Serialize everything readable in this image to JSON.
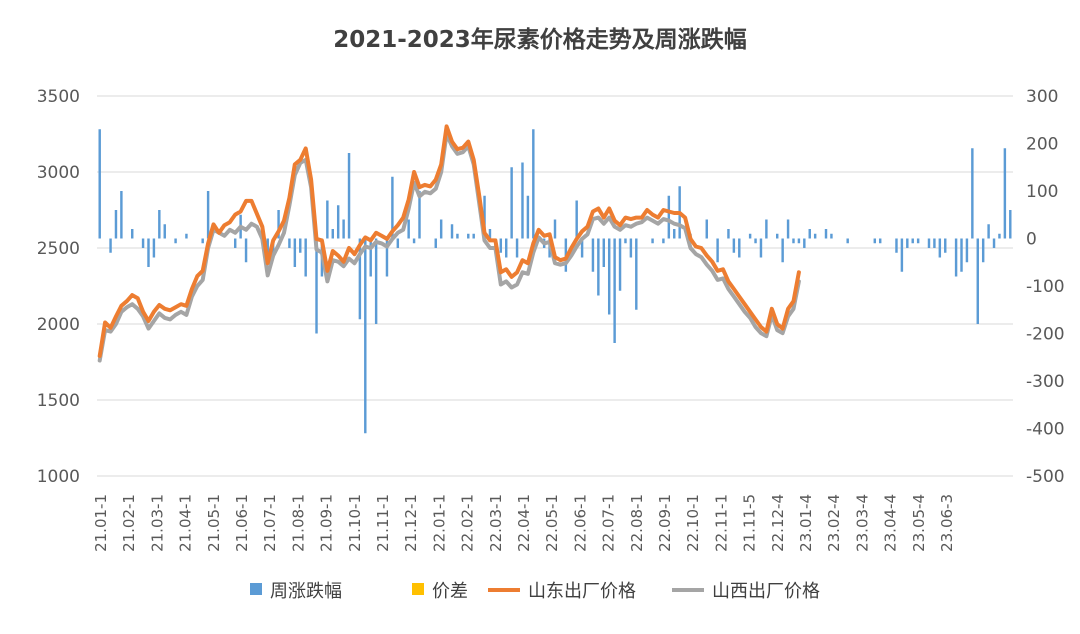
{
  "chart_data": {
    "type": "line",
    "title": "2021-2023年尿素价格走势及周涨跌幅",
    "x_tick_labels": [
      "21.01-1",
      "21.02-1",
      "21.03-1",
      "21.04-1",
      "21.05-1",
      "21.06-1",
      "21.07-1",
      "21.08-1",
      "21.09-1",
      "21.10-1",
      "21.11-1",
      "21.12-1",
      "22.01-1",
      "22.02-1",
      "22.03-1",
      "22.04-1",
      "22.05-1",
      "22.06-1",
      "22.07-1",
      "22.08-1",
      "22.09-1",
      "22.10-1",
      "22.11-1",
      "21.11-5",
      "22.12-4",
      "23.01-4",
      "23.02-4",
      "23.03-4",
      "23.04-4",
      "23.05-4",
      "23.06-3"
    ],
    "y_left": {
      "min": 1000,
      "max": 3500,
      "ticks": [
        "1000",
        "1500",
        "2000",
        "2500",
        "3000",
        "3500"
      ]
    },
    "y_right": {
      "min": -500,
      "max": 300,
      "ticks": [
        "-500",
        "-400",
        "-300",
        "-200",
        "-100",
        "0",
        "100",
        "200",
        "300"
      ]
    },
    "legend_position": "bottom",
    "colors": {
      "weekly": "#5b9bd5",
      "spread": "#ffc000",
      "shandong": "#ed7d31",
      "shanxi": "#a5a5a5"
    },
    "series": [
      {
        "name": "周涨跌幅",
        "type": "bar",
        "axis": "right",
        "values": [
          230,
          0,
          -30,
          60,
          100,
          0,
          20,
          0,
          -20,
          -60,
          -40,
          60,
          30,
          0,
          -10,
          0,
          10,
          0,
          0,
          -10,
          100,
          0,
          0,
          0,
          0,
          -20,
          50,
          -50,
          0,
          0,
          0,
          -30,
          -40,
          60,
          0,
          -20,
          -60,
          -30,
          -80,
          0,
          -200,
          -80,
          80,
          20,
          70,
          40,
          180,
          0,
          -170,
          -410,
          -80,
          -180,
          0,
          -80,
          130,
          -20,
          0,
          40,
          -10,
          100,
          0,
          0,
          -20,
          40,
          0,
          30,
          10,
          0,
          10,
          10,
          0,
          90,
          20,
          -20,
          -30,
          -40,
          150,
          -40,
          160,
          90,
          230,
          0,
          -20,
          -40,
          40,
          0,
          -70,
          0,
          80,
          -40,
          0,
          -70,
          -120,
          -60,
          -160,
          -220,
          -110,
          -10,
          -40,
          -150,
          0,
          0,
          -10,
          0,
          -10,
          90,
          20,
          110,
          0,
          10,
          0,
          0,
          40,
          0,
          -50,
          0,
          20,
          -30,
          -40,
          0,
          10,
          -10,
          -40,
          40,
          0,
          10,
          -50,
          40,
          -10,
          -10,
          -20,
          20,
          10,
          0,
          20,
          10,
          0,
          0,
          -10,
          0,
          0,
          0,
          0,
          -10,
          -10,
          0,
          0,
          -30,
          -70,
          -20,
          -10,
          -10,
          0,
          -20,
          -20,
          -40,
          -30,
          0,
          -80,
          -70,
          -50,
          190,
          -180,
          -50,
          30,
          -20,
          10,
          190,
          60
        ]
      },
      {
        "name": "价差",
        "type": "line",
        "axis": "left",
        "values": []
      },
      {
        "name": "山东出厂价格",
        "type": "line",
        "axis": "left",
        "values": [
          1790,
          2010,
          1975,
          2050,
          2120,
          2150,
          2190,
          2170,
          2080,
          2020,
          2080,
          2125,
          2100,
          2090,
          2110,
          2130,
          2120,
          2230,
          2315,
          2350,
          2530,
          2655,
          2600,
          2650,
          2670,
          2720,
          2740,
          2810,
          2810,
          2725,
          2640,
          2400,
          2550,
          2610,
          2680,
          2830,
          3050,
          3080,
          3155,
          2950,
          2560,
          2550,
          2350,
          2480,
          2450,
          2410,
          2500,
          2460,
          2520,
          2570,
          2550,
          2600,
          2580,
          2560,
          2610,
          2650,
          2700,
          2820,
          3000,
          2900,
          2915,
          2905,
          2950,
          3050,
          3300,
          3200,
          3150,
          3160,
          3200,
          3080,
          2850,
          2600,
          2550,
          2550,
          2340,
          2360,
          2310,
          2340,
          2420,
          2400,
          2530,
          2620,
          2580,
          2590,
          2440,
          2420,
          2430,
          2500,
          2560,
          2610,
          2640,
          2740,
          2760,
          2700,
          2760,
          2680,
          2650,
          2700,
          2690,
          2700,
          2700,
          2750,
          2720,
          2700,
          2750,
          2740,
          2730,
          2730,
          2700,
          2560,
          2510,
          2500,
          2450,
          2410,
          2350,
          2360,
          2280,
          2230,
          2180,
          2130,
          2080,
          2030,
          1980,
          1950,
          2100,
          2000,
          1970,
          2100,
          2150,
          2340
        ]
      },
      {
        "name": "山西出厂价格",
        "type": "line",
        "axis": "left",
        "values": [
          1760,
          1960,
          1950,
          2000,
          2080,
          2110,
          2130,
          2100,
          2050,
          1970,
          2020,
          2070,
          2040,
          2030,
          2060,
          2080,
          2060,
          2180,
          2250,
          2290,
          2500,
          2620,
          2600,
          2580,
          2620,
          2600,
          2640,
          2620,
          2660,
          2640,
          2560,
          2320,
          2450,
          2520,
          2600,
          2780,
          2980,
          3060,
          3080,
          2900,
          2490,
          2470,
          2280,
          2420,
          2410,
          2380,
          2430,
          2400,
          2460,
          2510,
          2500,
          2540,
          2530,
          2510,
          2560,
          2600,
          2620,
          2760,
          2930,
          2840,
          2870,
          2860,
          2890,
          3000,
          3250,
          3170,
          3120,
          3130,
          3170,
          3050,
          2800,
          2550,
          2500,
          2500,
          2260,
          2280,
          2240,
          2260,
          2340,
          2330,
          2470,
          2570,
          2530,
          2540,
          2400,
          2390,
          2400,
          2450,
          2510,
          2560,
          2590,
          2690,
          2700,
          2660,
          2700,
          2640,
          2620,
          2650,
          2640,
          2660,
          2670,
          2700,
          2680,
          2660,
          2690,
          2680,
          2660,
          2650,
          2630,
          2500,
          2460,
          2440,
          2390,
          2350,
          2290,
          2300,
          2230,
          2180,
          2130,
          2080,
          2040,
          1980,
          1940,
          1920,
          2060,
          1960,
          1940,
          2050,
          2100,
          2280
        ]
      }
    ]
  }
}
